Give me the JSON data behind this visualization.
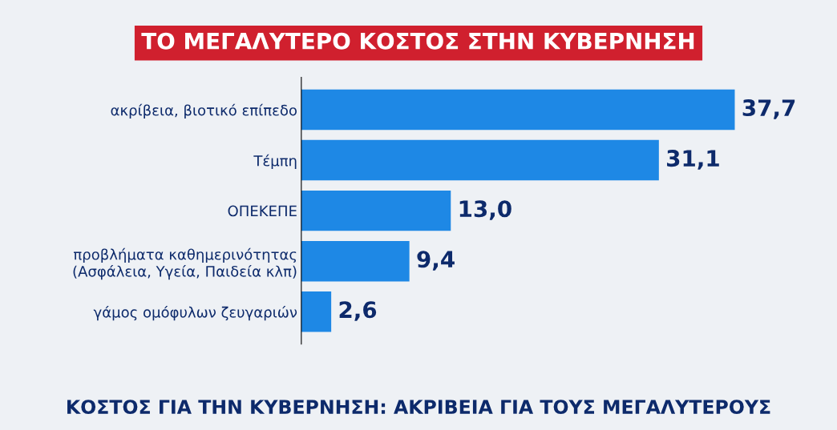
{
  "chart_data": {
    "type": "bar",
    "orientation": "horizontal",
    "title": "ΤΟ ΜΕΓΑΛΥΤΕΡΟ ΚΟΣΤΟΣ ΣΤΗΝ ΚΥΒΕΡΝΗΣΗ",
    "categories": [
      "ακρίβεια, βιοτικό επίπεδο",
      "Τέμπη",
      "ΟΠΕΚΕΠΕ",
      "προβλήματα καθημερινότητας\n(Ασφάλεια, Υγεία, Παιδεία κλπ)",
      "γάμος ομόφυλων ζευγαριών"
    ],
    "values": [
      37.7,
      31.1,
      13.0,
      9.4,
      2.6
    ],
    "value_labels": [
      "37,7",
      "31,1",
      "13,0",
      "9,4",
      "2,6"
    ],
    "color": "#1e88e5",
    "tick_labels": "y",
    "grid": false,
    "legend": false,
    "annotations": [
      "ΚΟΣΤΟΣ ΓΙΑ ΤΗΝ ΚΥΒΕΡΝΗΣΗ: ΑΚΡΙΒΕΙΑ ΓΙΑ ΤΟΥΣ ΜΕΓΑΛΥΤΕΡΟΥΣ"
    ]
  }
}
